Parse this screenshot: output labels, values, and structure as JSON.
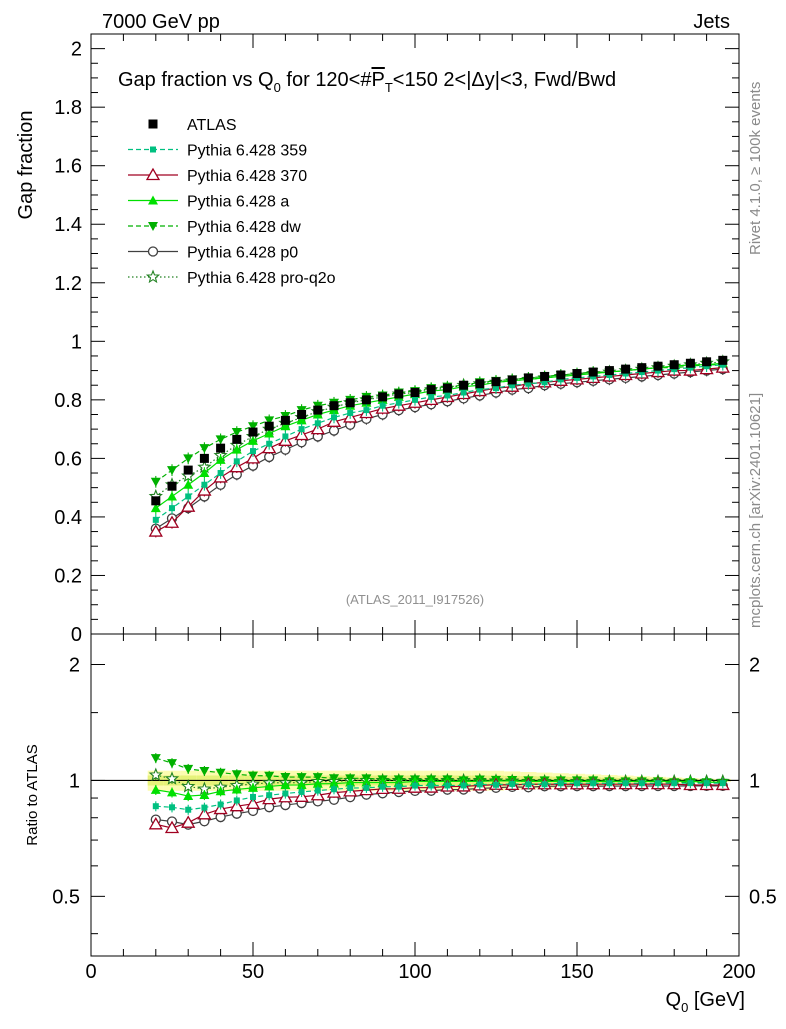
{
  "header": {
    "left": "7000 GeV pp",
    "right": "Jets"
  },
  "side_text": {
    "rivet": "Rivet 4.1.0, ≥ 100k events",
    "mcplots": "mcplots.cern.ch [arXiv:2401.10621]"
  },
  "analysis_id": "(ATLAS_2011_I917526)",
  "colors": {
    "atlas": "#000000",
    "p359": "#00c080",
    "p370": "#a00020",
    "pa": "#00e000",
    "pdw": "#00b000",
    "pp0": "#404040",
    "pq2o": "#208020"
  },
  "chart_data": {
    "type": "scatter",
    "title": "Gap fraction vs Q₀ for 120<#P̅T<150  2<|Δy|<3, Fwd/Bwd",
    "title_parts": {
      "pre": "Gap fraction vs Q",
      "sub0": "0",
      "mid": " for 120<#",
      "P": "P",
      "subT": "T",
      "post": "<150  2<|Δy|<3, Fwd/Bwd"
    },
    "xlabel": "Q",
    "xlabel_sub": "0",
    "xlabel_unit": " [GeV]",
    "ylabel": "Gap fraction",
    "ratio_ylabel": "Ratio to ATLAS",
    "xlim": [
      0,
      200
    ],
    "ylim": [
      0,
      2.05
    ],
    "ratio_ylim": [
      0.35,
      2.4
    ],
    "xticks": [
      0,
      50,
      100,
      150,
      200
    ],
    "yticks": [
      0,
      0.2,
      0.4,
      0.6,
      0.8,
      1,
      1.2,
      1.4,
      1.6,
      1.8,
      2
    ],
    "ytick_labels": [
      "0",
      "0.2",
      "0.4",
      "0.6",
      "0.8",
      "1",
      "1.2",
      "1.4",
      "1.6",
      "1.8",
      "2"
    ],
    "ratio_yticks": [
      0.5,
      1,
      2
    ],
    "ratio_ytick_labels": [
      "0.5",
      "1",
      "2"
    ],
    "x": [
      20,
      25,
      30,
      35,
      40,
      45,
      50,
      55,
      60,
      65,
      70,
      75,
      80,
      85,
      90,
      95,
      100,
      105,
      110,
      115,
      120,
      125,
      130,
      135,
      140,
      145,
      150,
      155,
      160,
      165,
      170,
      175,
      180,
      185,
      190,
      195
    ],
    "series": [
      {
        "name": "ATLAS",
        "key": "atlas",
        "values": [
          0.455,
          0.505,
          0.56,
          0.6,
          0.635,
          0.665,
          0.69,
          0.71,
          0.73,
          0.75,
          0.765,
          0.78,
          0.79,
          0.8,
          0.81,
          0.82,
          0.825,
          0.835,
          0.84,
          0.85,
          0.855,
          0.862,
          0.868,
          0.875,
          0.88,
          0.885,
          0.89,
          0.895,
          0.9,
          0.905,
          0.91,
          0.915,
          0.92,
          0.925,
          0.93,
          0.935
        ]
      },
      {
        "name": "Pythia 6.428 359",
        "key": "p359",
        "values": [
          0.39,
          0.43,
          0.47,
          0.51,
          0.55,
          0.59,
          0.625,
          0.65,
          0.675,
          0.7,
          0.72,
          0.74,
          0.755,
          0.765,
          0.78,
          0.79,
          0.8,
          0.81,
          0.815,
          0.825,
          0.835,
          0.84,
          0.85,
          0.855,
          0.86,
          0.87,
          0.875,
          0.88,
          0.885,
          0.89,
          0.895,
          0.9,
          0.905,
          0.91,
          0.915,
          0.92
        ]
      },
      {
        "name": "Pythia 6.428 370",
        "key": "p370",
        "values": [
          0.35,
          0.38,
          0.435,
          0.49,
          0.535,
          0.57,
          0.6,
          0.635,
          0.66,
          0.68,
          0.7,
          0.725,
          0.74,
          0.755,
          0.77,
          0.78,
          0.79,
          0.8,
          0.81,
          0.82,
          0.83,
          0.84,
          0.845,
          0.855,
          0.86,
          0.865,
          0.87,
          0.875,
          0.88,
          0.885,
          0.89,
          0.895,
          0.9,
          0.9,
          0.905,
          0.91
        ]
      },
      {
        "name": "Pythia 6.428 a",
        "key": "pa",
        "values": [
          0.43,
          0.47,
          0.51,
          0.55,
          0.595,
          0.63,
          0.66,
          0.685,
          0.71,
          0.73,
          0.75,
          0.765,
          0.78,
          0.79,
          0.8,
          0.81,
          0.82,
          0.83,
          0.835,
          0.845,
          0.85,
          0.86,
          0.865,
          0.87,
          0.875,
          0.88,
          0.885,
          0.89,
          0.895,
          0.9,
          0.905,
          0.91,
          0.915,
          0.92,
          0.92,
          0.925
        ]
      },
      {
        "name": "Pythia 6.428 dw",
        "key": "pdw",
        "values": [
          0.52,
          0.56,
          0.6,
          0.635,
          0.665,
          0.69,
          0.71,
          0.73,
          0.745,
          0.765,
          0.78,
          0.79,
          0.8,
          0.81,
          0.815,
          0.825,
          0.83,
          0.84,
          0.845,
          0.85,
          0.86,
          0.865,
          0.87,
          0.875,
          0.88,
          0.885,
          0.89,
          0.895,
          0.895,
          0.9,
          0.905,
          0.91,
          0.91,
          0.915,
          0.92,
          0.92
        ]
      },
      {
        "name": "Pythia 6.428 p0",
        "key": "pp0",
        "values": [
          0.36,
          0.395,
          0.43,
          0.47,
          0.51,
          0.545,
          0.575,
          0.605,
          0.63,
          0.655,
          0.675,
          0.695,
          0.715,
          0.735,
          0.75,
          0.765,
          0.775,
          0.785,
          0.795,
          0.805,
          0.815,
          0.825,
          0.835,
          0.84,
          0.85,
          0.855,
          0.86,
          0.865,
          0.87,
          0.875,
          0.88,
          0.885,
          0.89,
          0.895,
          0.9,
          0.905
        ]
      },
      {
        "name": "Pythia 6.428 pro-q2o",
        "key": "pq2o",
        "values": [
          0.47,
          0.51,
          0.54,
          0.57,
          0.61,
          0.645,
          0.675,
          0.7,
          0.72,
          0.74,
          0.76,
          0.775,
          0.79,
          0.8,
          0.81,
          0.82,
          0.825,
          0.835,
          0.84,
          0.85,
          0.855,
          0.86,
          0.865,
          0.87,
          0.875,
          0.88,
          0.885,
          0.89,
          0.895,
          0.9,
          0.905,
          0.91,
          0.915,
          0.92,
          0.925,
          0.93
        ]
      }
    ],
    "legend": [
      {
        "label": "ATLAS",
        "key": "atlas"
      },
      {
        "label": "Pythia 6.428 359",
        "key": "p359"
      },
      {
        "label": "Pythia 6.428 370",
        "key": "p370"
      },
      {
        "label": "Pythia 6.428 a",
        "key": "pa"
      },
      {
        "label": "Pythia 6.428 dw",
        "key": "pdw"
      },
      {
        "label": "Pythia 6.428 p0",
        "key": "pp0"
      },
      {
        "label": "Pythia 6.428 pro-q2o",
        "key": "pq2o"
      }
    ],
    "legend_position": "top-left"
  }
}
